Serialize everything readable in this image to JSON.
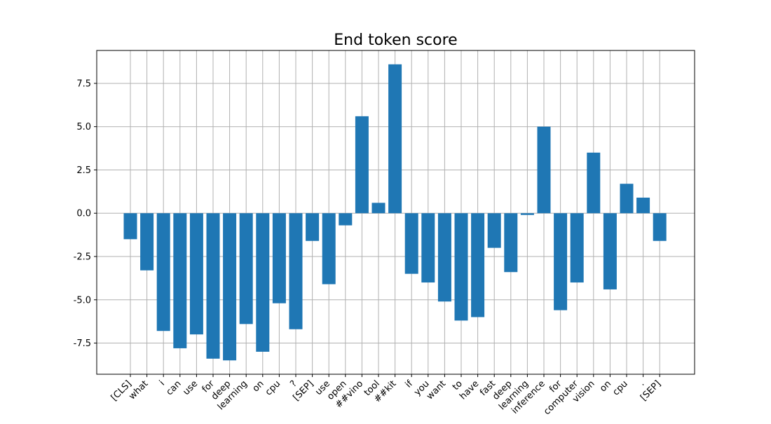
{
  "chart_data": {
    "type": "bar",
    "title": "End token score",
    "xlabel": "",
    "ylabel": "",
    "categories": [
      "[CLS]",
      "what",
      "i",
      "can",
      "use",
      "for",
      "deep",
      "learning",
      "on",
      "cpu",
      "?",
      "[SEP]",
      "use",
      "open",
      "##vino",
      "tool",
      "##kit",
      "if",
      "you",
      "want",
      "to",
      "have",
      "fast",
      "deep",
      "learning",
      "inference",
      "for",
      "computer",
      "vision",
      "on",
      "cpu",
      ".",
      "[SEP]"
    ],
    "values": [
      -1.5,
      -3.3,
      -6.8,
      -7.8,
      -7.0,
      -8.4,
      -8.5,
      -6.4,
      -8.0,
      -5.2,
      -6.7,
      -1.6,
      -4.1,
      -0.7,
      5.6,
      0.6,
      8.6,
      -3.5,
      -4.0,
      -5.1,
      -6.2,
      -6.0,
      -2.0,
      -3.4,
      -0.1,
      5.0,
      -5.6,
      -4.0,
      3.5,
      -4.4,
      1.7,
      0.9,
      -1.6
    ],
    "ylim": [
      -9.3,
      9.4
    ],
    "yticks": [
      -7.5,
      -5.0,
      -2.5,
      0.0,
      2.5,
      5.0,
      7.5
    ],
    "ytick_labels": [
      "-7.5",
      "-5.0",
      "-2.5",
      "0.0",
      "2.5",
      "5.0",
      "7.5"
    ],
    "grid": true,
    "bar_color": "#1f77b4",
    "grid_color": "#b0b0b0"
  }
}
